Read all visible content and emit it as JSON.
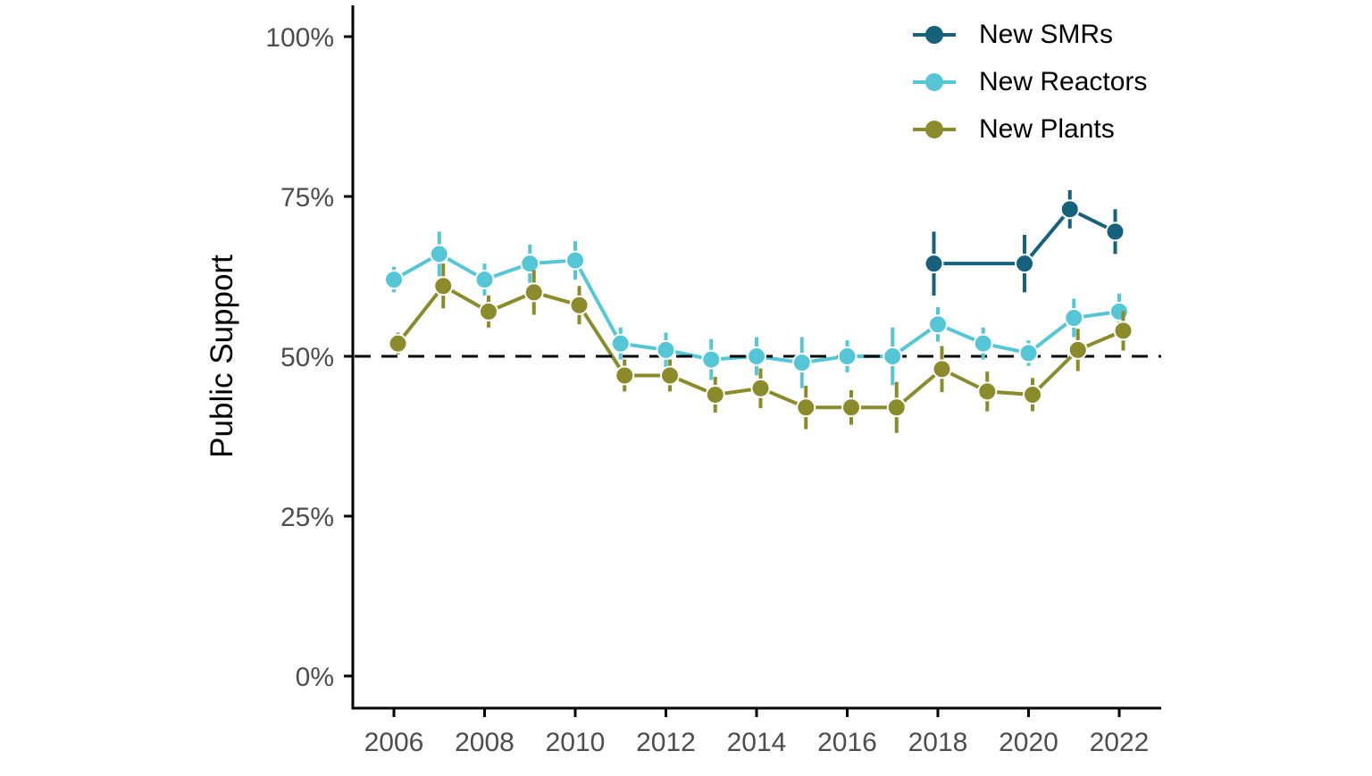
{
  "figure": {
    "background_color": "#ffffff",
    "axis_text_color": "#4d4d4d",
    "axis_line_color": "#000000"
  },
  "chart_data": {
    "type": "line",
    "title": "",
    "xlabel": "",
    "ylabel": "Public Support",
    "ylim": [
      0,
      105
    ],
    "y_ticks": [
      0,
      25,
      50,
      75,
      100
    ],
    "y_tick_labels": [
      "0%",
      "25%",
      "50%",
      "75%",
      "100%"
    ],
    "x_ticks": [
      2006,
      2008,
      2010,
      2012,
      2014,
      2016,
      2018,
      2020,
      2022
    ],
    "x_tick_labels": [
      "2006",
      "2008",
      "2010",
      "2012",
      "2014",
      "2016",
      "2018",
      "2020",
      "2022"
    ],
    "grid": "off",
    "legend_position": "top-right-inside",
    "error_bars": true,
    "point_style": "filled-circle",
    "reference_line": {
      "y": 50,
      "style": "dashed",
      "color": "#000000"
    },
    "series": [
      {
        "name": "New SMRs",
        "color": "#16617c",
        "x": [
          2018,
          2020,
          2021,
          2022
        ],
        "values": [
          64.5,
          64.5,
          73,
          69.5
        ],
        "ci": [
          5,
          4.5,
          3,
          3.5
        ]
      },
      {
        "name": "New Reactors",
        "color": "#55c6d6",
        "x": [
          2006,
          2007,
          2008,
          2009,
          2010,
          2011,
          2012,
          2013,
          2014,
          2015,
          2016,
          2017,
          2018,
          2019,
          2020,
          2021,
          2022
        ],
        "values": [
          62,
          66,
          62,
          64.5,
          65,
          52,
          51,
          49.5,
          50,
          49,
          50,
          50,
          55,
          52,
          50.5,
          56,
          57
        ],
        "ci": [
          2,
          3.5,
          2.5,
          3,
          3,
          2.5,
          2.7,
          3.2,
          3,
          4,
          2.5,
          4.5,
          2.7,
          2.5,
          2,
          3,
          2.8
        ]
      },
      {
        "name": "New Plants",
        "color": "#8b8b2b",
        "x": [
          2006,
          2007,
          2008,
          2009,
          2010,
          2011,
          2012,
          2013,
          2014,
          2015,
          2016,
          2017,
          2018,
          2019,
          2020,
          2021,
          2022
        ],
        "values": [
          52,
          61,
          57,
          60,
          58,
          47,
          47,
          44,
          45,
          42,
          42,
          42,
          48,
          44.5,
          44,
          51,
          54
        ],
        "ci": [
          1.7,
          3.5,
          2.5,
          3.5,
          3,
          2.5,
          2.5,
          2.8,
          3.1,
          3.4,
          2.7,
          4,
          3.6,
          3.1,
          2.6,
          3.3,
          3.1
        ]
      }
    ]
  }
}
